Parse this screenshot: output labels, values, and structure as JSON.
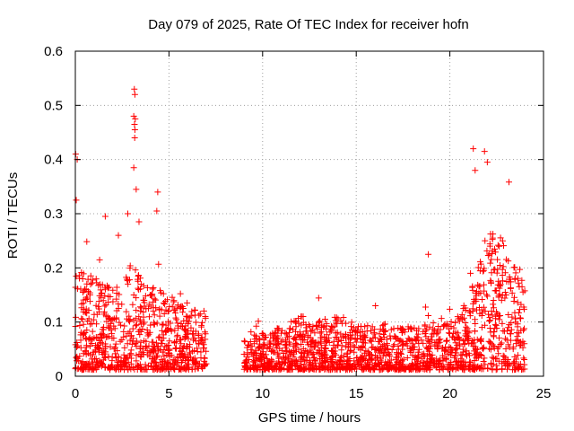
{
  "chart_data": {
    "type": "scatter",
    "title": "Day 079 of 2025, Rate Of TEC Index for receiver hofn",
    "xlabel": "GPS time / hours",
    "ylabel": "ROTI / TECUs",
    "xlim": [
      0,
      25
    ],
    "ylim": [
      0,
      0.6
    ],
    "xticks": [
      0,
      5,
      10,
      15,
      20,
      25
    ],
    "yticks": [
      0,
      0.1,
      0.2,
      0.3,
      0.4,
      0.5,
      0.6
    ],
    "xtick_labels": [
      "0",
      "5",
      "10",
      "15",
      "20",
      "25"
    ],
    "ytick_labels": [
      "0",
      "0.1",
      "0.2",
      "0.3",
      "0.4",
      "0.5",
      "0.6"
    ],
    "grid": true,
    "marker": "+",
    "series_color": "#ff0000",
    "outliers": [
      [
        0.02,
        0.41
      ],
      [
        0.05,
        0.325
      ],
      [
        0.1,
        0.4
      ],
      [
        3.15,
        0.53
      ],
      [
        3.18,
        0.52
      ],
      [
        3.12,
        0.48
      ],
      [
        3.2,
        0.475
      ],
      [
        3.16,
        0.465
      ],
      [
        3.18,
        0.455
      ],
      [
        3.17,
        0.44
      ],
      [
        3.12,
        0.385
      ],
      [
        4.4,
        0.34
      ],
      [
        4.35,
        0.305
      ],
      [
        21.25,
        0.42
      ],
      [
        21.35,
        0.38
      ],
      [
        21.85,
        0.415
      ],
      [
        22.0,
        0.395
      ],
      [
        18.85,
        0.225
      ],
      [
        1.6,
        0.295
      ],
      [
        2.3,
        0.26
      ],
      [
        2.8,
        0.3
      ],
      [
        3.25,
        0.345
      ],
      [
        3.4,
        0.285
      ]
    ],
    "density_profile": {
      "hours": [
        0,
        0.5,
        1,
        1.5,
        2,
        2.5,
        3,
        3.5,
        4,
        4.5,
        5,
        5.5,
        6,
        6.5,
        7,
        9,
        10,
        11,
        12,
        13,
        14,
        15,
        16,
        17,
        18,
        19,
        20,
        20.5,
        21,
        21.5,
        22,
        22.5,
        23,
        23.5,
        24
      ],
      "upper_roti": [
        0.2,
        0.18,
        0.17,
        0.16,
        0.16,
        0.16,
        0.2,
        0.17,
        0.16,
        0.15,
        0.14,
        0.13,
        0.12,
        0.11,
        0.1,
        0.06,
        0.07,
        0.08,
        0.1,
        0.09,
        0.1,
        0.09,
        0.09,
        0.08,
        0.08,
        0.08,
        0.09,
        0.1,
        0.14,
        0.2,
        0.26,
        0.25,
        0.24,
        0.2,
        0.18
      ]
    },
    "data_gap_hours": [
      7,
      9
    ]
  }
}
